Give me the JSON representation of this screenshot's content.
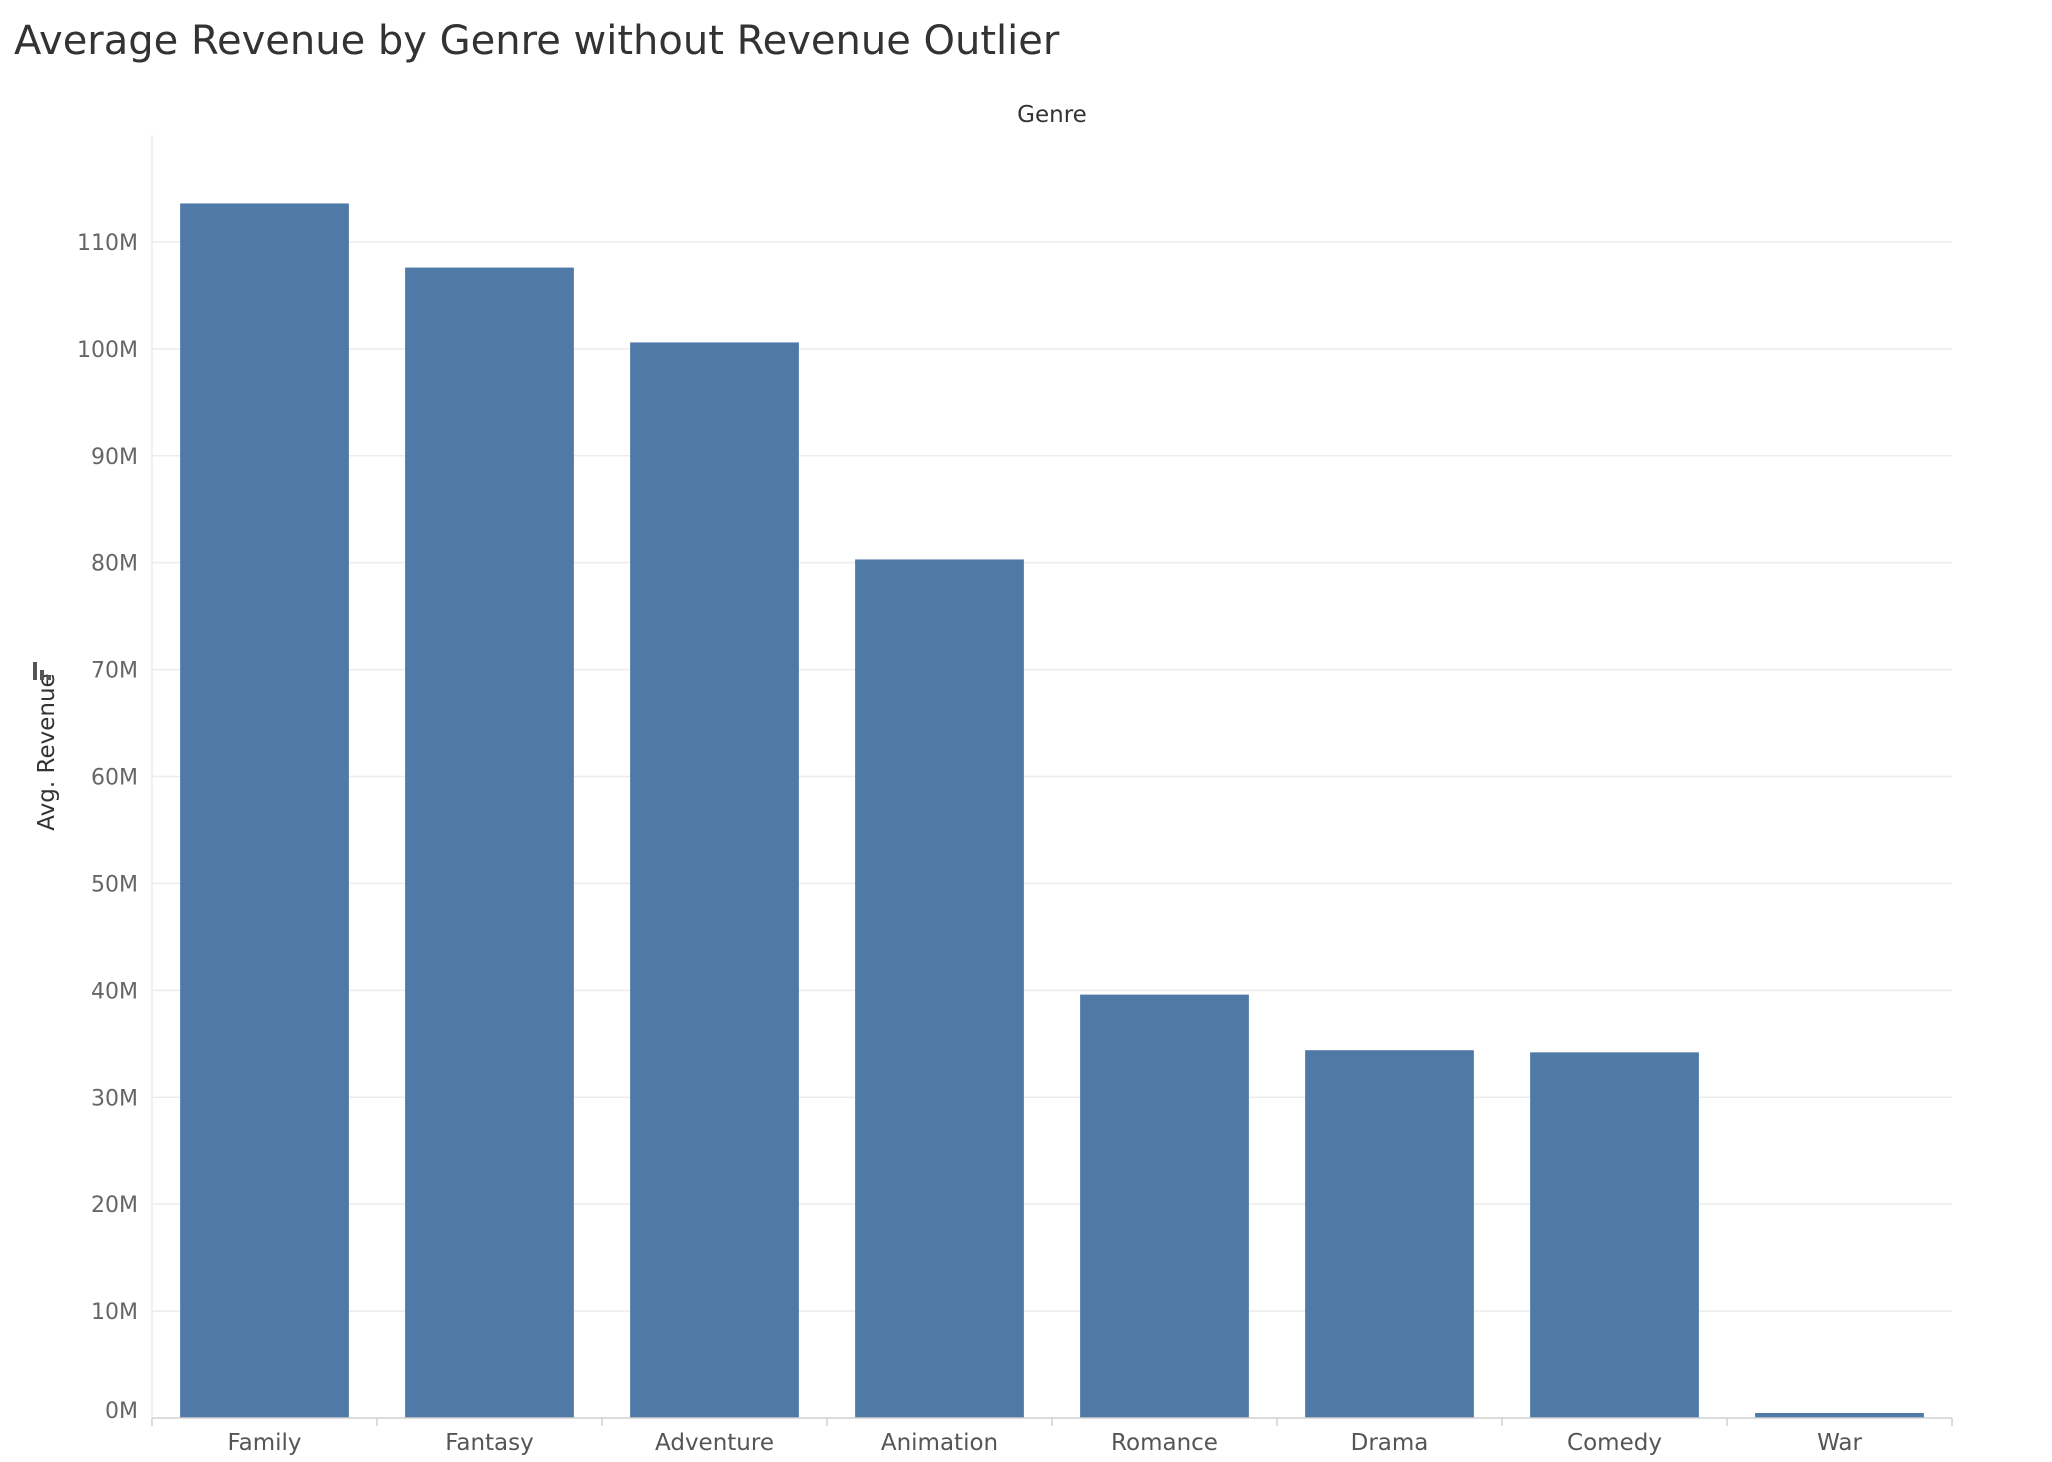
{
  "title": "Average Revenue by Genre without Revenue Outlier",
  "colors": {
    "bar": "#4f79a7",
    "grid": "#ececec",
    "axis": "#d0d0d0"
  },
  "icons": {
    "axis_sort": "sort-bars-icon"
  },
  "chart_data": {
    "type": "bar",
    "title": "Average Revenue by Genre without Revenue Outlier",
    "xlabel": "Genre",
    "ylabel": "Avg. Revenue",
    "categories": [
      "Family",
      "Fantasy",
      "Adventure",
      "Animation",
      "Romance",
      "Drama",
      "Comedy",
      "War"
    ],
    "values": [
      113600000,
      107600000,
      100600000,
      80300000,
      39600000,
      34400000,
      34200000,
      400000
    ],
    "ylim": [
      0,
      120000000
    ],
    "yticks": [
      0,
      10000000,
      20000000,
      30000000,
      40000000,
      50000000,
      60000000,
      70000000,
      80000000,
      90000000,
      100000000,
      110000000
    ],
    "ytick_labels": [
      "0M",
      "10M",
      "20M",
      "30M",
      "40M",
      "50M",
      "60M",
      "70M",
      "80M",
      "90M",
      "100M",
      "110M"
    ],
    "grid": true,
    "legend": "none"
  }
}
